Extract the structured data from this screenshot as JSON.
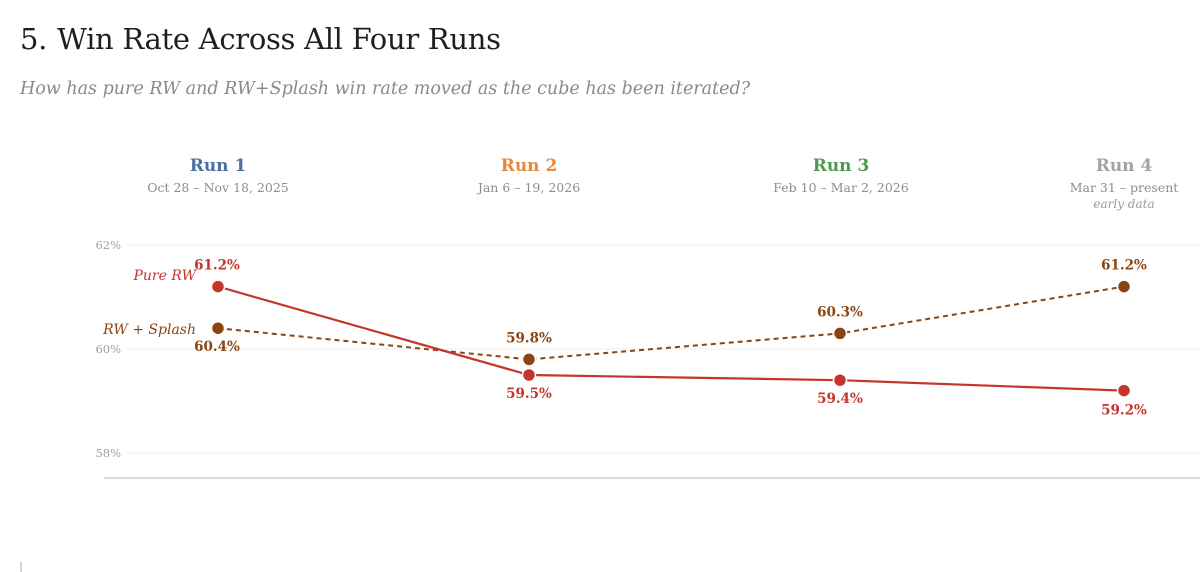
{
  "section": {
    "number": "5.",
    "title": "Win Rate Across All Four Runs",
    "subtitle": "How has pure RW and RW+Splash win rate moved as the cube has been iterated?"
  },
  "runs": [
    {
      "name": "Run 1",
      "dates": "Oct 28 – Nov 18, 2025",
      "note": "",
      "color": "#4a6fa5"
    },
    {
      "name": "Run 2",
      "dates": "Jan 6 – 19, 2026",
      "note": "",
      "color": "#e8883a"
    },
    {
      "name": "Run 3",
      "dates": "Feb 10 – Mar 2, 2026",
      "note": "",
      "color": "#4f9a4f"
    },
    {
      "name": "Run 4",
      "dates": "Mar 31 – present",
      "note": "early data",
      "color": "#a3a3a3"
    }
  ],
  "chart_data": {
    "type": "line",
    "categories": [
      "Run 1",
      "Run 2",
      "Run 3",
      "Run 4"
    ],
    "ylim": [
      58,
      62
    ],
    "ytick_labels": [
      "62%",
      "60%",
      "58%"
    ],
    "grid": true,
    "series": [
      {
        "name": "Pure RW",
        "values": [
          61.2,
          59.5,
          59.4,
          59.2
        ],
        "labels": [
          "61.2%",
          "59.5%",
          "59.4%",
          "59.2%"
        ],
        "color": "#c4362c",
        "style": "solid"
      },
      {
        "name": "RW + Splash",
        "values": [
          60.4,
          59.8,
          60.3,
          61.2
        ],
        "labels": [
          "60.4%",
          "59.8%",
          "60.3%",
          "61.2%"
        ],
        "color": "#8b4513",
        "style": "dashed"
      }
    ]
  }
}
